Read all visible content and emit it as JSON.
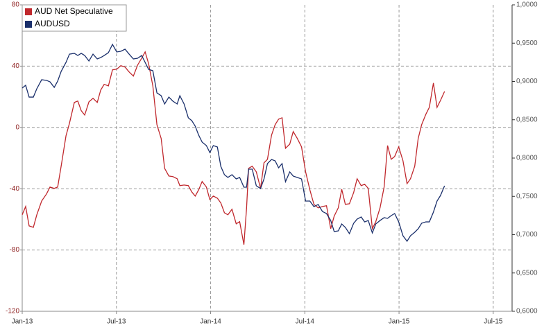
{
  "chart_data": {
    "type": "line",
    "x": [
      0,
      0.22,
      0.44,
      0.71,
      0.93,
      1.24,
      1.55,
      1.77,
      2.04,
      2.26,
      2.48,
      2.79,
      3.01,
      3.32,
      3.54,
      3.76,
      3.98,
      4.25,
      4.51,
      4.78,
      5,
      5.22,
      5.49,
      5.75,
      6.02,
      6.28,
      6.55,
      6.81,
      7.08,
      7.35,
      7.61,
      7.83,
      8.05,
      8.32,
      8.58,
      8.85,
      9.07,
      9.34,
      9.6,
      9.87,
      10.04,
      10.31,
      10.58,
      10.8,
      11.02,
      11.24,
      11.46,
      11.73,
      11.95,
      12.17,
      12.43,
      12.65,
      12.88,
      13.1,
      13.36,
      13.63,
      13.85,
      14.12,
      14.29,
      14.42,
      14.65,
      14.91,
      15.18,
      15.4,
      15.62,
      15.88,
      16.11,
      16.33,
      16.55,
      16.77,
      17.04,
      17.26,
      17.52,
      17.79,
      18.05,
      18.32,
      18.58,
      18.85,
      19.12,
      19.38,
      19.65,
      19.87,
      20.13,
      20.35,
      20.58,
      20.84,
      21.11,
      21.33,
      21.59,
      21.81,
      22.04,
      22.3,
      22.52,
      22.79,
      23.05,
      23.27,
      23.5,
      23.72,
      23.98,
      24.25,
      24.51,
      24.73,
      25,
      25.22,
      25.44,
      25.71,
      25.93,
      26.19,
      26.42,
      26.64,
      26.9
    ],
    "series": [
      {
        "name": "AUD Net Speculative",
        "color": "#c0282d",
        "values": [
          -57,
          -51.6,
          -64.3,
          -65.2,
          -57,
          -48,
          -43.4,
          -38.9,
          -39.8,
          -38.9,
          -25.3,
          -5.4,
          2.7,
          16.3,
          17.2,
          10.9,
          8.1,
          16.7,
          19,
          16.3,
          24.4,
          28.1,
          27.1,
          37.6,
          38,
          40.3,
          39.4,
          36.2,
          33.5,
          40.7,
          45.2,
          49.3,
          41.6,
          27.1,
          1.8,
          -7.2,
          -26.7,
          -31.7,
          -32.1,
          -33.5,
          -38,
          -37.6,
          -38,
          -42.1,
          -44.8,
          -40.7,
          -35.3,
          -38.9,
          -47.1,
          -44.8,
          -46.2,
          -49.3,
          -55.7,
          -57,
          -53.4,
          -62.9,
          -61.5,
          -76.5,
          -52.5,
          -26.7,
          -25.3,
          -29,
          -39.8,
          -23.1,
          -20.8,
          -5,
          1.8,
          5.4,
          6.3,
          -13.6,
          -10.9,
          -2.7,
          -7.2,
          -12.7,
          -29,
          -40.7,
          -50.2,
          -52.5,
          -51.6,
          -51.1,
          -66.1,
          -57.9,
          -52.5,
          -40.3,
          -50.2,
          -49.8,
          -42.5,
          -33.5,
          -38,
          -37.1,
          -39.8,
          -66.1,
          -61.5,
          -52.5,
          -38.9,
          -11.8,
          -20.8,
          -19,
          -12.7,
          -21.7,
          -36.7,
          -33.5,
          -25.3,
          -7.2,
          1.8,
          8.6,
          13.1,
          29,
          13.1,
          17.6,
          23.5
        ]
      },
      {
        "name": "AUDUSD",
        "color": "#1a2f6b",
        "axis": "y2",
        "values": [
          0.8914,
          0.895,
          0.8796,
          0.8796,
          0.8905,
          0.9023,
          0.9014,
          0.8995,
          0.8923,
          0.9005,
          0.9131,
          0.9249,
          0.9357,
          0.9367,
          0.9339,
          0.9367,
          0.9339,
          0.9267,
          0.9357,
          0.9294,
          0.9312,
          0.9339,
          0.9376,
          0.9484,
          0.9385,
          0.9394,
          0.9421,
          0.9357,
          0.9294,
          0.9303,
          0.9339,
          0.9249,
          0.9158,
          0.914,
          0.8851,
          0.8814,
          0.8706,
          0.8796,
          0.8742,
          0.8706,
          0.8814,
          0.8706,
          0.8525,
          0.8489,
          0.8416,
          0.8299,
          0.8208,
          0.8163,
          0.8072,
          0.8163,
          0.8145,
          0.7891,
          0.7783,
          0.7747,
          0.7783,
          0.7728,
          0.7747,
          0.762,
          0.762,
          0.7855,
          0.7855,
          0.7638,
          0.7602,
          0.7728,
          0.7928,
          0.7982,
          0.7964,
          0.7873,
          0.7928,
          0.7692,
          0.7819,
          0.7765,
          0.7747,
          0.7728,
          0.7439,
          0.7439,
          0.7366,
          0.7394,
          0.7303,
          0.7276,
          0.7185,
          0.7041,
          0.705,
          0.714,
          0.7095,
          0.7014,
          0.7149,
          0.7203,
          0.7231,
          0.7167,
          0.7185,
          0.7023,
          0.714,
          0.7185,
          0.7222,
          0.7213,
          0.7249,
          0.7276,
          0.7167,
          0.6986,
          0.6914,
          0.6986,
          0.7032,
          0.7077,
          0.7149,
          0.7167,
          0.7167,
          0.7294,
          0.7439,
          0.7511,
          0.7638
        ]
      }
    ],
    "xlim": [
      0,
      31.2
    ],
    "xticks": [
      {
        "value": 0,
        "label": "Jan-13"
      },
      {
        "value": 6,
        "label": "Jul-13"
      },
      {
        "value": 12,
        "label": "Jan-14"
      },
      {
        "value": 18,
        "label": "Jul-14"
      },
      {
        "value": 24,
        "label": "Jan-15"
      },
      {
        "value": 30,
        "label": "Jul-15"
      }
    ],
    "ylim": [
      -120,
      80
    ],
    "yticks": [
      -120,
      -80,
      -40,
      0,
      40,
      80
    ],
    "y2lim": [
      0.6,
      1.0
    ],
    "y2ticks": [
      {
        "value": 0.6,
        "label": "0,6000"
      },
      {
        "value": 0.65,
        "label": "0,6500"
      },
      {
        "value": 0.7,
        "label": "0,7000"
      },
      {
        "value": 0.75,
        "label": "0,7500"
      },
      {
        "value": 0.8,
        "label": "0,8000"
      },
      {
        "value": 0.85,
        "label": "0,8500"
      },
      {
        "value": 0.9,
        "label": "0,9000"
      },
      {
        "value": 0.95,
        "label": "0,9500"
      },
      {
        "value": 1.0,
        "label": "1,0000"
      }
    ],
    "grid": true,
    "legend": "top-left"
  }
}
